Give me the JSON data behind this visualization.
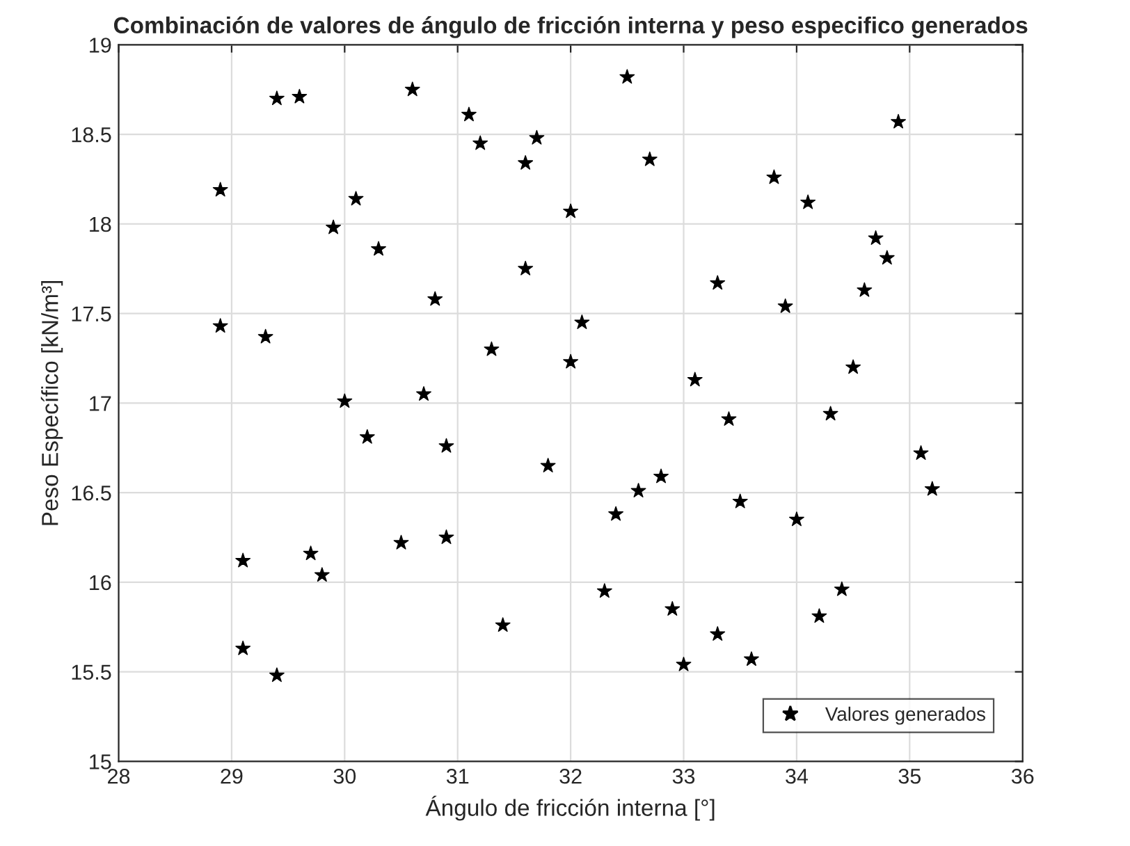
{
  "chart_data": {
    "type": "scatter",
    "title": "Combinación de valores de ángulo de fricción interna y peso especifico generados",
    "xlabel": "Ángulo de fricción interna [°]",
    "ylabel": "Peso Específico [kN/m³]",
    "series": [
      {
        "name": "Valores generados",
        "color": "#000000",
        "x": [
          29.4,
          29.6,
          30.6,
          31.1,
          31.2,
          31.7,
          31.6,
          28.9,
          30.1,
          32.0,
          29.9,
          30.3,
          31.6,
          30.8,
          28.9,
          29.3,
          31.3,
          32.0,
          30.0,
          30.7,
          32.5,
          34.9,
          32.7,
          33.8,
          34.1,
          34.7,
          34.8,
          33.3,
          34.6,
          33.9,
          32.1,
          33.1,
          34.5,
          33.4,
          34.3,
          30.2,
          30.9,
          31.8,
          30.5,
          30.9,
          29.1,
          29.7,
          29.8,
          31.4,
          29.1,
          29.4,
          35.1,
          35.2,
          32.8,
          32.6,
          32.4,
          33.5,
          34.0,
          32.3,
          34.4,
          32.9,
          34.2,
          33.3,
          33.6,
          33.0
        ],
        "values": [
          18.7,
          18.71,
          18.75,
          18.61,
          18.45,
          18.48,
          18.34,
          18.19,
          18.14,
          18.07,
          17.98,
          17.86,
          17.75,
          17.58,
          17.43,
          17.37,
          17.3,
          17.23,
          17.01,
          17.05,
          18.82,
          18.57,
          18.36,
          18.26,
          18.12,
          17.92,
          17.81,
          17.67,
          17.63,
          17.54,
          17.45,
          17.13,
          17.2,
          16.91,
          16.94,
          16.81,
          16.76,
          16.65,
          16.22,
          16.25,
          16.12,
          16.16,
          16.04,
          15.76,
          15.63,
          15.48,
          16.72,
          16.52,
          16.59,
          16.51,
          16.38,
          16.45,
          16.35,
          15.95,
          15.96,
          15.85,
          15.81,
          15.71,
          15.57,
          15.54
        ]
      }
    ],
    "xlim": [
      28,
      36
    ],
    "xticks": [
      28,
      29,
      30,
      31,
      32,
      33,
      34,
      35,
      36
    ],
    "ylim": [
      15,
      19
    ],
    "yticks": [
      15,
      15.5,
      16,
      16.5,
      17,
      17.5,
      18,
      18.5,
      19
    ],
    "grid": true,
    "legend": "bottom right",
    "marker": "star"
  }
}
